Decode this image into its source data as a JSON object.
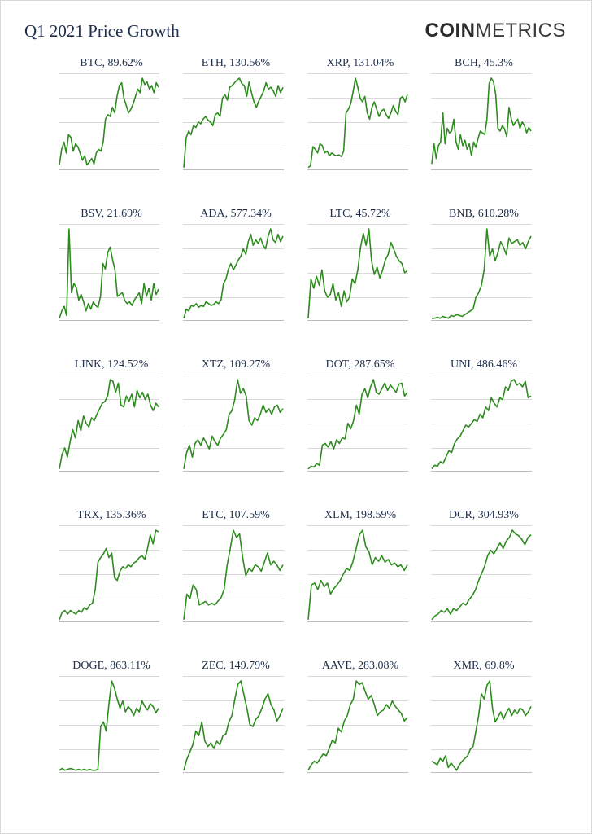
{
  "header": {
    "title": "Q1 2021 Price Growth",
    "brand_strong": "COIN",
    "brand_light": "METRICS"
  },
  "colors": {
    "line": "#2e8b1f",
    "grid": "#d9d9d9",
    "axis": "#bdbdbd",
    "text": "#1f2f4d"
  },
  "chart_data": [
    {
      "type": "line",
      "title": "BTC, 89.62%",
      "values": [
        0.05,
        0.22,
        0.3,
        0.18,
        0.38,
        0.35,
        0.2,
        0.28,
        0.25,
        0.18,
        0.1,
        0.15,
        0.05,
        0.08,
        0.12,
        0.06,
        0.18,
        0.22,
        0.2,
        0.3,
        0.55,
        0.6,
        0.58,
        0.68,
        0.62,
        0.8,
        0.92,
        0.95,
        0.78,
        0.7,
        0.62,
        0.66,
        0.72,
        0.8,
        0.88,
        0.84,
        1.0,
        0.93,
        0.96,
        0.88,
        0.92,
        0.84,
        0.95,
        0.9
      ]
    },
    {
      "type": "line",
      "title": "ETH, 130.56%",
      "values": [
        0.02,
        0.35,
        0.42,
        0.38,
        0.48,
        0.46,
        0.52,
        0.5,
        0.55,
        0.58,
        0.54,
        0.52,
        0.48,
        0.6,
        0.62,
        0.58,
        0.78,
        0.82,
        0.76,
        0.9,
        0.92,
        0.95,
        0.98,
        1.0,
        0.94,
        0.92,
        0.8,
        0.96,
        0.84,
        0.74,
        0.68,
        0.75,
        0.8,
        0.86,
        0.95,
        0.88,
        0.9,
        0.86,
        0.8,
        0.92,
        0.84,
        0.9
      ]
    },
    {
      "type": "line",
      "title": "XRP, 131.04%",
      "values": [
        0.02,
        0.04,
        0.25,
        0.22,
        0.18,
        0.28,
        0.26,
        0.18,
        0.2,
        0.15,
        0.18,
        0.16,
        0.15,
        0.16,
        0.14,
        0.2,
        0.62,
        0.66,
        0.72,
        0.85,
        1.0,
        0.9,
        0.78,
        0.74,
        0.8,
        0.62,
        0.55,
        0.68,
        0.74,
        0.66,
        0.58,
        0.64,
        0.66,
        0.6,
        0.56,
        0.62,
        0.7,
        0.64,
        0.6,
        0.78,
        0.8,
        0.74,
        0.82
      ]
    },
    {
      "type": "line",
      "title": "BCH, 45.3%",
      "values": [
        0.06,
        0.28,
        0.12,
        0.26,
        0.3,
        0.62,
        0.28,
        0.45,
        0.4,
        0.42,
        0.55,
        0.3,
        0.22,
        0.38,
        0.26,
        0.32,
        0.22,
        0.28,
        0.15,
        0.3,
        0.24,
        0.34,
        0.42,
        0.4,
        0.38,
        0.55,
        0.94,
        1.0,
        0.96,
        0.82,
        0.45,
        0.42,
        0.48,
        0.44,
        0.36,
        0.68,
        0.56,
        0.48,
        0.52,
        0.55,
        0.45,
        0.52,
        0.48,
        0.4,
        0.46,
        0.42
      ]
    },
    {
      "type": "line",
      "title": "BSV, 21.69%",
      "values": [
        0.02,
        0.1,
        0.15,
        0.05,
        1.0,
        0.3,
        0.4,
        0.36,
        0.22,
        0.28,
        0.2,
        0.1,
        0.18,
        0.12,
        0.2,
        0.16,
        0.14,
        0.26,
        0.62,
        0.56,
        0.74,
        0.8,
        0.66,
        0.55,
        0.26,
        0.28,
        0.3,
        0.22,
        0.18,
        0.2,
        0.16,
        0.22,
        0.26,
        0.3,
        0.18,
        0.4,
        0.26,
        0.35,
        0.22,
        0.4,
        0.28,
        0.34
      ]
    },
    {
      "type": "line",
      "title": "ADA, 577.34%",
      "values": [
        0.02,
        0.12,
        0.1,
        0.16,
        0.15,
        0.18,
        0.14,
        0.16,
        0.15,
        0.2,
        0.18,
        0.16,
        0.17,
        0.2,
        0.18,
        0.22,
        0.4,
        0.45,
        0.56,
        0.62,
        0.55,
        0.6,
        0.66,
        0.7,
        0.78,
        0.72,
        0.86,
        0.94,
        0.82,
        0.88,
        0.84,
        0.9,
        0.82,
        0.78,
        0.92,
        1.0,
        0.88,
        0.85,
        0.94,
        0.86,
        0.92
      ]
    },
    {
      "type": "line",
      "title": "LTC, 45.72%",
      "values": [
        0.02,
        0.45,
        0.35,
        0.48,
        0.38,
        0.55,
        0.32,
        0.25,
        0.28,
        0.4,
        0.22,
        0.3,
        0.15,
        0.32,
        0.2,
        0.25,
        0.45,
        0.4,
        0.55,
        0.8,
        0.95,
        0.82,
        1.0,
        0.65,
        0.5,
        0.58,
        0.46,
        0.55,
        0.66,
        0.72,
        0.85,
        0.78,
        0.7,
        0.65,
        0.62,
        0.52,
        0.54
      ]
    },
    {
      "type": "line",
      "title": "BNB, 610.28%",
      "values": [
        0.02,
        0.02,
        0.03,
        0.02,
        0.04,
        0.03,
        0.02,
        0.05,
        0.04,
        0.06,
        0.05,
        0.04,
        0.06,
        0.08,
        0.1,
        0.12,
        0.25,
        0.3,
        0.38,
        0.55,
        1.0,
        0.7,
        0.78,
        0.65,
        0.74,
        0.86,
        0.8,
        0.72,
        0.9,
        0.84,
        0.86,
        0.88,
        0.82,
        0.85,
        0.78,
        0.86,
        0.92
      ]
    },
    {
      "type": "line",
      "title": "LINK, 124.52%",
      "values": [
        0.02,
        0.18,
        0.25,
        0.15,
        0.32,
        0.45,
        0.36,
        0.55,
        0.44,
        0.6,
        0.52,
        0.48,
        0.58,
        0.55,
        0.62,
        0.68,
        0.74,
        0.76,
        0.82,
        1.0,
        0.98,
        0.86,
        0.96,
        0.72,
        0.7,
        0.82,
        0.76,
        0.84,
        0.7,
        0.88,
        0.8,
        0.86,
        0.78,
        0.84,
        0.72,
        0.66,
        0.74,
        0.7
      ]
    },
    {
      "type": "line",
      "title": "XTZ, 109.27%",
      "values": [
        0.02,
        0.2,
        0.28,
        0.15,
        0.3,
        0.34,
        0.28,
        0.36,
        0.3,
        0.24,
        0.38,
        0.32,
        0.28,
        0.36,
        0.4,
        0.45,
        0.62,
        0.66,
        0.78,
        1.0,
        0.85,
        0.9,
        0.82,
        0.55,
        0.5,
        0.58,
        0.55,
        0.62,
        0.72,
        0.64,
        0.68,
        0.62,
        0.7,
        0.72,
        0.64,
        0.68
      ]
    },
    {
      "type": "line",
      "title": "DOT, 287.65%",
      "values": [
        0.02,
        0.05,
        0.04,
        0.08,
        0.06,
        0.28,
        0.3,
        0.26,
        0.32,
        0.24,
        0.34,
        0.3,
        0.36,
        0.35,
        0.52,
        0.46,
        0.55,
        0.72,
        0.62,
        0.84,
        0.9,
        0.8,
        0.92,
        1.0,
        0.86,
        0.84,
        0.9,
        0.96,
        0.88,
        0.94,
        0.9,
        0.86,
        0.95,
        0.96,
        0.82,
        0.86
      ]
    },
    {
      "type": "line",
      "title": "UNI, 486.46%",
      "values": [
        0.02,
        0.06,
        0.05,
        0.1,
        0.08,
        0.15,
        0.22,
        0.2,
        0.3,
        0.35,
        0.38,
        0.44,
        0.5,
        0.48,
        0.52,
        0.56,
        0.54,
        0.62,
        0.58,
        0.7,
        0.66,
        0.8,
        0.74,
        0.7,
        0.8,
        0.78,
        0.92,
        0.88,
        0.98,
        1.0,
        0.94,
        0.96,
        0.92,
        0.98,
        0.8,
        0.82
      ]
    },
    {
      "type": "line",
      "title": "TRX, 135.36%",
      "values": [
        0.02,
        0.1,
        0.12,
        0.08,
        0.12,
        0.1,
        0.08,
        0.12,
        0.1,
        0.15,
        0.13,
        0.18,
        0.2,
        0.35,
        0.65,
        0.7,
        0.74,
        0.8,
        0.7,
        0.75,
        0.48,
        0.45,
        0.55,
        0.6,
        0.58,
        0.62,
        0.6,
        0.64,
        0.66,
        0.7,
        0.72,
        0.68,
        0.8,
        0.95,
        0.85,
        1.0,
        0.98
      ]
    },
    {
      "type": "line",
      "title": "ETC, 107.59%",
      "values": [
        0.02,
        0.3,
        0.25,
        0.4,
        0.35,
        0.18,
        0.2,
        0.22,
        0.18,
        0.2,
        0.18,
        0.22,
        0.26,
        0.35,
        0.62,
        0.8,
        1.0,
        0.92,
        0.96,
        0.7,
        0.5,
        0.58,
        0.55,
        0.62,
        0.6,
        0.55,
        0.65,
        0.75,
        0.62,
        0.66,
        0.62,
        0.56,
        0.62
      ]
    },
    {
      "type": "line",
      "title": "XLM, 198.59%",
      "values": [
        0.02,
        0.4,
        0.42,
        0.35,
        0.45,
        0.38,
        0.42,
        0.3,
        0.36,
        0.4,
        0.45,
        0.52,
        0.58,
        0.56,
        0.66,
        0.8,
        0.95,
        1.0,
        0.82,
        0.76,
        0.62,
        0.7,
        0.66,
        0.72,
        0.65,
        0.68,
        0.62,
        0.64,
        0.6,
        0.62,
        0.56,
        0.62
      ]
    },
    {
      "type": "line",
      "title": "DCR, 304.93%",
      "values": [
        0.02,
        0.06,
        0.08,
        0.12,
        0.1,
        0.14,
        0.08,
        0.14,
        0.12,
        0.16,
        0.2,
        0.18,
        0.24,
        0.28,
        0.34,
        0.44,
        0.52,
        0.6,
        0.72,
        0.78,
        0.74,
        0.8,
        0.86,
        0.8,
        0.88,
        0.92,
        1.0,
        0.96,
        0.94,
        0.9,
        0.84,
        0.92,
        0.95
      ]
    },
    {
      "type": "line",
      "title": "DOGE, 863.11%",
      "values": [
        0.02,
        0.04,
        0.02,
        0.03,
        0.04,
        0.03,
        0.02,
        0.03,
        0.02,
        0.03,
        0.02,
        0.03,
        0.02,
        0.02,
        0.03,
        0.5,
        0.55,
        0.45,
        0.75,
        1.0,
        0.92,
        0.8,
        0.7,
        0.78,
        0.66,
        0.72,
        0.68,
        0.62,
        0.7,
        0.66,
        0.78,
        0.72,
        0.68,
        0.75,
        0.72,
        0.65,
        0.7
      ]
    },
    {
      "type": "line",
      "title": "ZEC, 149.79%",
      "values": [
        0.02,
        0.14,
        0.22,
        0.3,
        0.45,
        0.4,
        0.55,
        0.34,
        0.28,
        0.32,
        0.26,
        0.34,
        0.3,
        0.4,
        0.42,
        0.55,
        0.62,
        0.8,
        0.96,
        1.0,
        0.85,
        0.7,
        0.52,
        0.5,
        0.58,
        0.62,
        0.7,
        0.8,
        0.86,
        0.74,
        0.68,
        0.56,
        0.62,
        0.7
      ]
    },
    {
      "type": "line",
      "title": "AAVE, 283.08%",
      "values": [
        0.02,
        0.08,
        0.12,
        0.1,
        0.15,
        0.2,
        0.18,
        0.26,
        0.35,
        0.32,
        0.48,
        0.44,
        0.56,
        0.62,
        0.74,
        0.8,
        1.0,
        0.96,
        0.98,
        0.88,
        0.8,
        0.84,
        0.74,
        0.62,
        0.66,
        0.68,
        0.74,
        0.7,
        0.78,
        0.72,
        0.68,
        0.64,
        0.56,
        0.6
      ]
    },
    {
      "type": "line",
      "title": "XMR, 69.8%",
      "values": [
        0.12,
        0.1,
        0.08,
        0.15,
        0.12,
        0.18,
        0.05,
        0.1,
        0.06,
        0.02,
        0.08,
        0.12,
        0.15,
        0.18,
        0.25,
        0.28,
        0.45,
        0.62,
        0.86,
        0.8,
        0.95,
        1.0,
        0.7,
        0.55,
        0.6,
        0.66,
        0.58,
        0.65,
        0.7,
        0.62,
        0.68,
        0.64,
        0.7,
        0.68,
        0.62,
        0.66,
        0.72
      ]
    }
  ]
}
